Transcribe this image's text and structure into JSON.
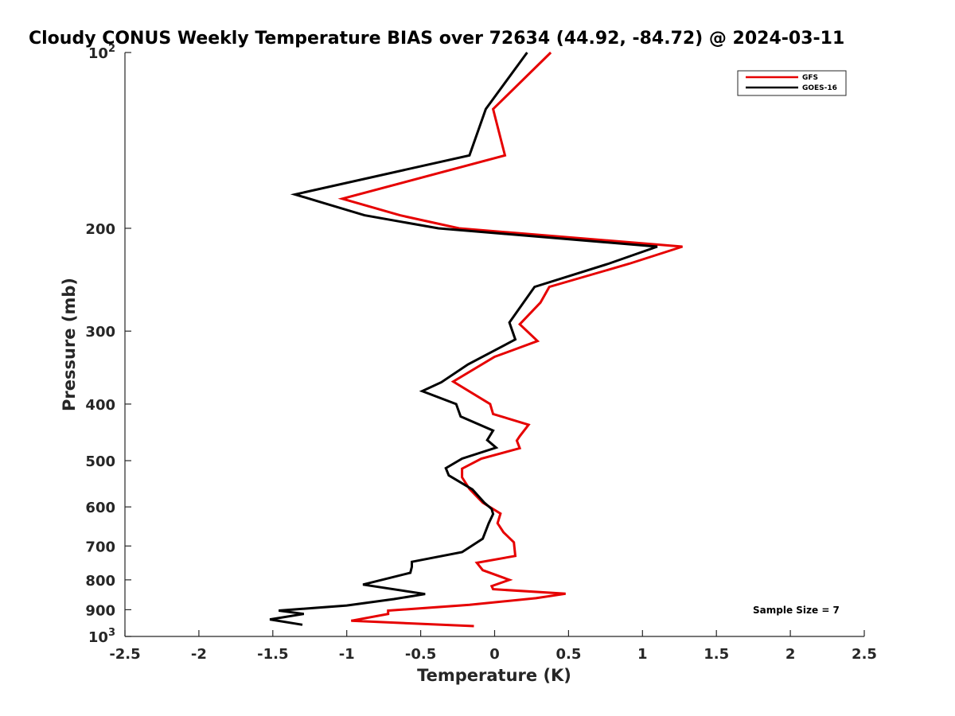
{
  "chart_data": {
    "type": "line",
    "title": "Cloudy CONUS Weekly Temperature BIAS over 72634 (44.92, -84.72) @ 2024-03-11",
    "xlabel": "Temperature (K)",
    "ylabel": "Pressure (mb)",
    "xlim": [
      -2.5,
      2.5
    ],
    "ylim": [
      1000,
      100
    ],
    "yscale": "log",
    "grid": false,
    "legend_position": "top-right",
    "x_ticks": [
      "-2.5",
      "-2",
      "-1.5",
      "-1",
      "-0.5",
      "0",
      "0.5",
      "1",
      "1.5",
      "2",
      "2.5"
    ],
    "x_tick_values": [
      -2.5,
      -2,
      -1.5,
      -1,
      -0.5,
      0,
      0.5,
      1,
      1.5,
      2,
      2.5
    ],
    "y_ticks": [
      {
        "value": 100,
        "base": "10",
        "exp": "2"
      },
      {
        "value": 200,
        "label": "200"
      },
      {
        "value": 300,
        "label": "300"
      },
      {
        "value": 400,
        "label": "400"
      },
      {
        "value": 500,
        "label": "500"
      },
      {
        "value": 600,
        "label": "600"
      },
      {
        "value": 700,
        "label": "700"
      },
      {
        "value": 800,
        "label": "800"
      },
      {
        "value": 900,
        "label": "900"
      },
      {
        "value": 1000,
        "base": "10",
        "exp": "3"
      }
    ],
    "annotation": "Sample Size = 7",
    "series": [
      {
        "name": "GFS",
        "color": "#e60000",
        "points": [
          [
            0.38,
            100
          ],
          [
            -0.01,
            125
          ],
          [
            0.07,
            150
          ],
          [
            -1.03,
            178
          ],
          [
            -0.64,
            190
          ],
          [
            -0.24,
            200
          ],
          [
            1.27,
            215
          ],
          [
            0.91,
            230
          ],
          [
            0.37,
            252
          ],
          [
            0.31,
            268
          ],
          [
            0.17,
            292
          ],
          [
            0.29,
            312
          ],
          [
            0.0,
            332
          ],
          [
            -0.28,
            366
          ],
          [
            -0.03,
            400
          ],
          [
            -0.01,
            416
          ],
          [
            0.23,
            434
          ],
          [
            0.17,
            454
          ],
          [
            0.15,
            462
          ],
          [
            0.17,
            476
          ],
          [
            -0.09,
            496
          ],
          [
            -0.22,
            516
          ],
          [
            -0.22,
            534
          ],
          [
            -0.17,
            559
          ],
          [
            -0.08,
            590
          ],
          [
            0.04,
            616
          ],
          [
            0.02,
            640
          ],
          [
            0.06,
            663
          ],
          [
            0.13,
            690
          ],
          [
            0.14,
            728
          ],
          [
            -0.12,
            748
          ],
          [
            -0.08,
            770
          ],
          [
            0.1,
            800
          ],
          [
            -0.02,
            820
          ],
          [
            -0.01,
            830
          ],
          [
            0.48,
            845
          ],
          [
            0.28,
            860
          ],
          [
            -0.17,
            883
          ],
          [
            -0.72,
            903
          ],
          [
            -0.72,
            915
          ],
          [
            -0.97,
            940
          ],
          [
            -0.14,
            960
          ]
        ]
      },
      {
        "name": "GOES-16",
        "color": "#000000",
        "points": [
          [
            0.22,
            100
          ],
          [
            -0.06,
            125
          ],
          [
            -0.17,
            150
          ],
          [
            -1.35,
            175
          ],
          [
            -0.88,
            190
          ],
          [
            -0.38,
            200
          ],
          [
            1.1,
            215
          ],
          [
            0.77,
            230
          ],
          [
            0.27,
            252
          ],
          [
            0.1,
            290
          ],
          [
            0.14,
            310
          ],
          [
            -0.18,
            342
          ],
          [
            -0.36,
            367
          ],
          [
            -0.49,
            380
          ],
          [
            -0.26,
            400
          ],
          [
            -0.23,
            420
          ],
          [
            -0.01,
            444
          ],
          [
            -0.05,
            461
          ],
          [
            0.01,
            475
          ],
          [
            -0.22,
            496
          ],
          [
            -0.33,
            515
          ],
          [
            -0.31,
            530
          ],
          [
            -0.15,
            560
          ],
          [
            -0.07,
            590
          ],
          [
            -0.02,
            605
          ],
          [
            -0.01,
            617
          ],
          [
            -0.04,
            640
          ],
          [
            -0.08,
            680
          ],
          [
            -0.22,
            717
          ],
          [
            -0.56,
            745
          ],
          [
            -0.56,
            760
          ],
          [
            -0.57,
            778
          ],
          [
            -0.89,
            815
          ],
          [
            -0.47,
            846
          ],
          [
            -0.68,
            863
          ],
          [
            -1.0,
            885
          ],
          [
            -1.46,
            903
          ],
          [
            -1.29,
            915
          ],
          [
            -1.52,
            935
          ],
          [
            -1.3,
            955
          ]
        ]
      }
    ]
  }
}
